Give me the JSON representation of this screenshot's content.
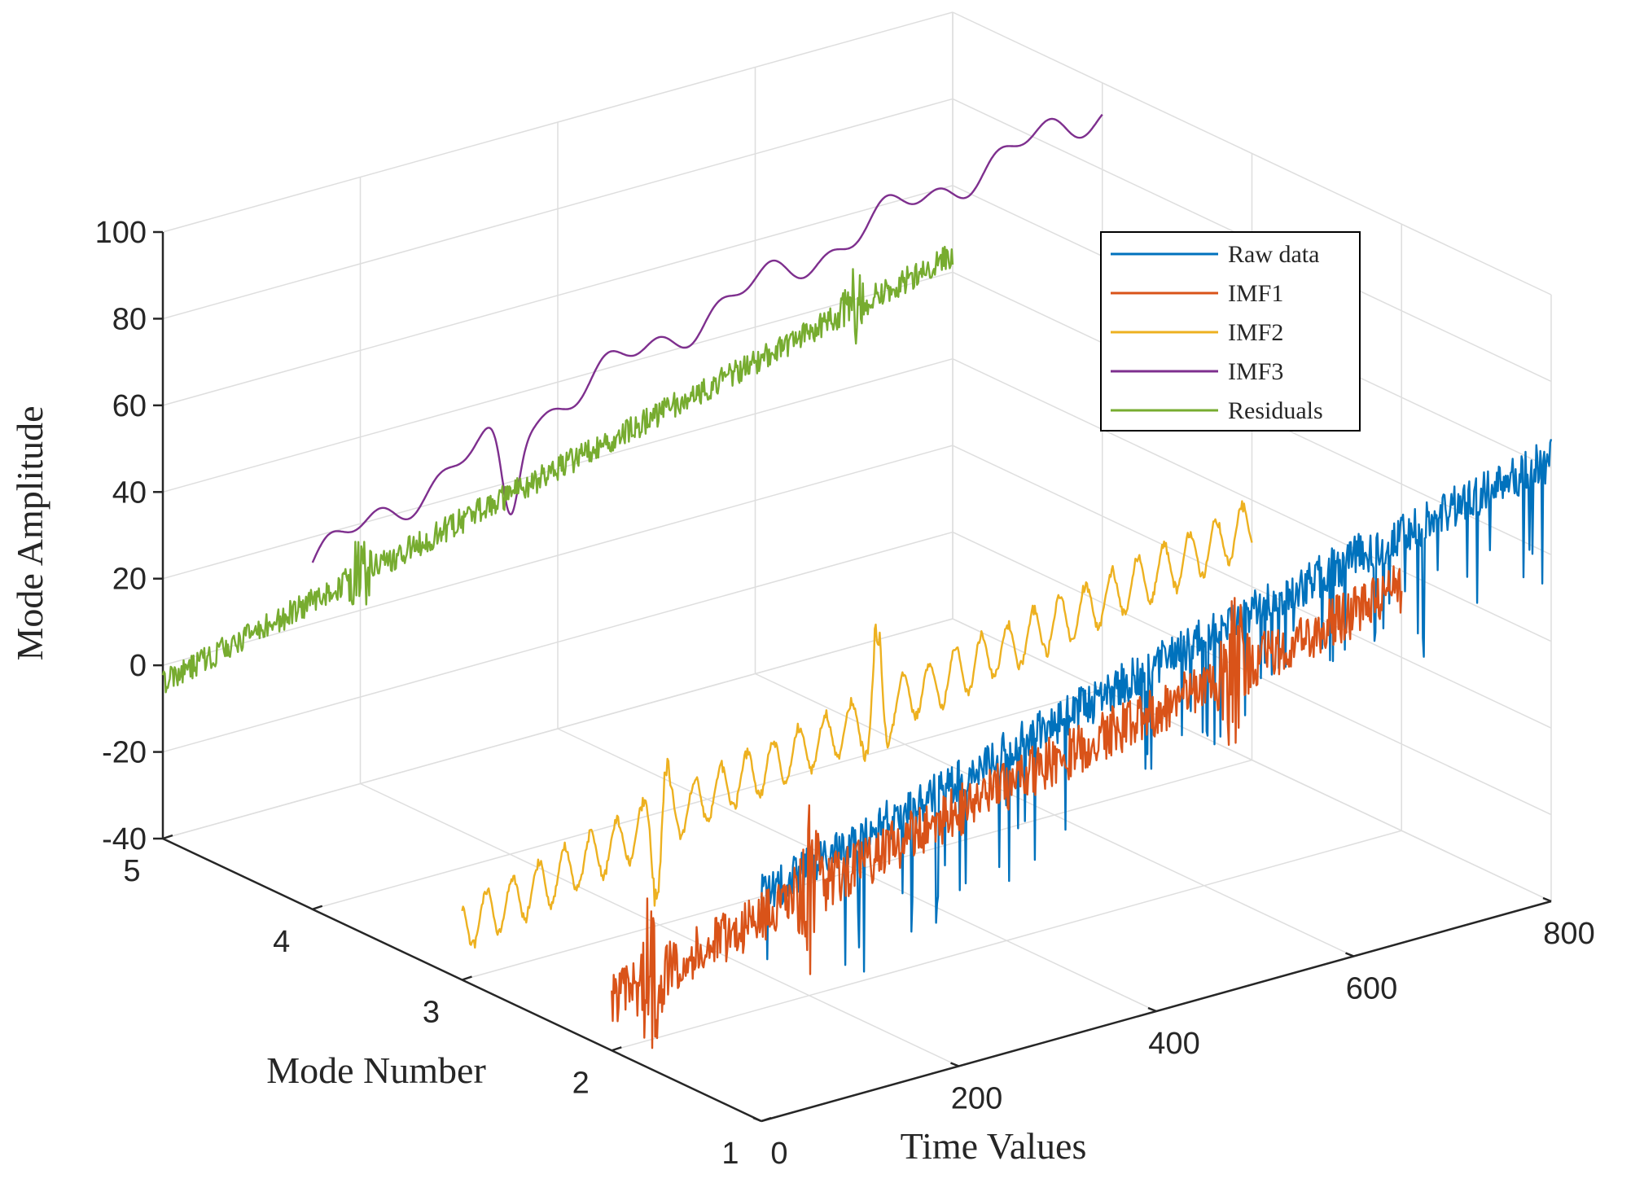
{
  "chart_data": {
    "type": "line",
    "projection": "3d",
    "title": "",
    "xlabel": "Time Values",
    "ylabel": "Mode Number",
    "zlabel": "Mode Amplitude",
    "xlim": [
      0,
      800
    ],
    "ylim": [
      1,
      5
    ],
    "zlim": [
      -40,
      100
    ],
    "x_ticks": [
      "0",
      "200",
      "400",
      "600",
      "800"
    ],
    "y_ticks": [
      "1",
      "2",
      "3",
      "4",
      "5"
    ],
    "z_ticks": [
      "-40",
      "-20",
      "0",
      "20",
      "40",
      "60",
      "80",
      "100"
    ],
    "grid": true,
    "legend_position": "top-right",
    "series": [
      {
        "name": "Raw data",
        "color": "#0072BD",
        "mode": 1,
        "x_start": 0,
        "x_end": 800,
        "baseline": [
          12,
          26,
          40,
          52,
          62
        ],
        "noise_amplitude": 5,
        "spike_depth": 30,
        "spike_rate": 0.06
      },
      {
        "name": "IMF1",
        "color": "#D95319",
        "mode": 2,
        "x_start": 0,
        "x_end": 800,
        "baseline": [
          -28,
          -16,
          -4,
          6,
          16
        ],
        "noise_amplitude": 6,
        "bursts_at": [
          40,
          200,
          630
        ]
      },
      {
        "name": "IMF2",
        "color": "#EDB120",
        "mode": 3,
        "x_start": 0,
        "x_end": 800,
        "baseline": [
          -28,
          -16,
          -6,
          4,
          14
        ],
        "noise_amplitude": 7,
        "bursts_at": [
          200,
          420
        ]
      },
      {
        "name": "IMF3",
        "color": "#7E2F8E",
        "mode": 4,
        "x_start": 0,
        "x_end": 800,
        "baseline": [
          40,
          58,
          72,
          84,
          94
        ],
        "dip": {
          "at": 200,
          "value": 38
        }
      },
      {
        "name": "Residuals",
        "color": "#77AC30",
        "mode": 5,
        "x_start": 0,
        "x_end": 800,
        "baseline": [
          -4,
          8,
          20,
          32,
          44
        ],
        "noise_amplitude": 3,
        "bursts_at": [
          200,
          700
        ]
      }
    ]
  }
}
